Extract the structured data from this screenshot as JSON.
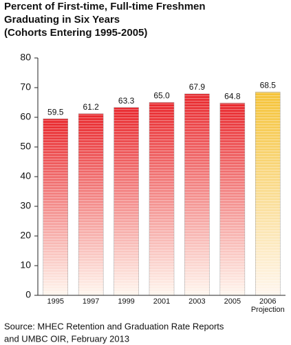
{
  "chart_data": {
    "type": "bar",
    "title": [
      "Percent of First-time, Full-time Freshmen",
      "Graduating in Six Years",
      "(Cohorts Entering 1995-2005)"
    ],
    "categories": [
      "1995",
      "1997",
      "1999",
      "2001",
      "2003",
      "2005",
      "2006"
    ],
    "projection_label": "Projection",
    "values": [
      59.5,
      61.2,
      63.3,
      65.0,
      67.9,
      64.8,
      68.5
    ],
    "value_labels": [
      "59.5",
      "61.2",
      "63.3",
      "65.0",
      "67.9",
      "64.8",
      "68.5"
    ],
    "colors": [
      "#e8252a",
      "#e8252a",
      "#e8252a",
      "#e8252a",
      "#e8252a",
      "#e8252a",
      "#f5c234"
    ],
    "ylim": [
      0,
      80
    ],
    "yticks": [
      0,
      10,
      20,
      30,
      40,
      50,
      60,
      70,
      80
    ],
    "grid": false,
    "source": [
      "Source: MHEC Retention and Graduation Rate Reports",
      "and UMBC OIR, February 2013"
    ]
  }
}
